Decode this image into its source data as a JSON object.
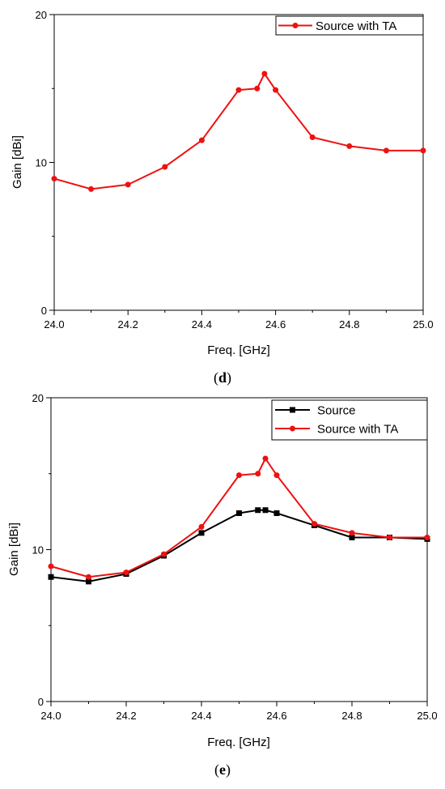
{
  "colors": {
    "source": "#000000",
    "source_with_ta": "#ee1111",
    "axis": "#000000"
  },
  "chart_data": [
    {
      "type": "line",
      "panel_label": "(d)",
      "panel_letter": "d",
      "xlabel": "Freq. [GHz]",
      "ylabel": "Gain [dBi]",
      "xlim": [
        24.0,
        25.0
      ],
      "ylim": [
        0,
        20
      ],
      "x_ticks": [
        "24.0",
        "24.2",
        "24.4",
        "24.6",
        "24.8",
        "25.0"
      ],
      "y_ticks": [
        "0",
        "10",
        "20"
      ],
      "legend_position": "top-right",
      "series": [
        {
          "name": "Source with TA",
          "color": "#ee1111",
          "marker": "circle",
          "x": [
            24.0,
            24.1,
            24.2,
            24.3,
            24.4,
            24.5,
            24.55,
            24.57,
            24.6,
            24.7,
            24.8,
            24.9,
            25.0
          ],
          "y": [
            8.9,
            8.2,
            8.5,
            9.7,
            11.5,
            14.9,
            15.0,
            16.0,
            14.9,
            11.7,
            11.1,
            10.8,
            10.8
          ]
        }
      ]
    },
    {
      "type": "line",
      "panel_label": "(e)",
      "panel_letter": "e",
      "xlabel": "Freq. [GHz]",
      "ylabel": "Gain [dBi]",
      "xlim": [
        24.0,
        25.0
      ],
      "ylim": [
        0,
        20
      ],
      "x_ticks": [
        "24.0",
        "24.2",
        "24.4",
        "24.6",
        "24.8",
        "25.0"
      ],
      "y_ticks": [
        "0",
        "10",
        "20"
      ],
      "legend_position": "top-right",
      "series": [
        {
          "name": "Source",
          "color": "#000000",
          "marker": "square",
          "x": [
            24.0,
            24.1,
            24.2,
            24.3,
            24.4,
            24.5,
            24.55,
            24.57,
            24.6,
            24.7,
            24.8,
            24.9,
            25.0
          ],
          "y": [
            8.2,
            7.9,
            8.4,
            9.6,
            11.1,
            12.4,
            12.6,
            12.6,
            12.4,
            11.6,
            10.8,
            10.8,
            10.7
          ]
        },
        {
          "name": "Source with TA",
          "color": "#ee1111",
          "marker": "circle",
          "x": [
            24.0,
            24.1,
            24.2,
            24.3,
            24.4,
            24.5,
            24.55,
            24.57,
            24.6,
            24.7,
            24.8,
            24.9,
            25.0
          ],
          "y": [
            8.9,
            8.2,
            8.5,
            9.7,
            11.5,
            14.9,
            15.0,
            16.0,
            14.9,
            11.7,
            11.1,
            10.8,
            10.8
          ]
        }
      ]
    }
  ]
}
